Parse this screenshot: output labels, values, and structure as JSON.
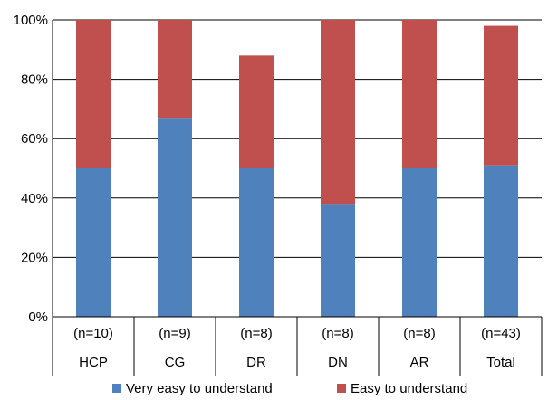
{
  "chart_data": {
    "type": "bar",
    "stacked": true,
    "title": "",
    "xlabel": "",
    "ylabel": "",
    "ylim": [
      0,
      100
    ],
    "yticks": [
      "0%",
      "20%",
      "40%",
      "60%",
      "80%",
      "100%"
    ],
    "grid": true,
    "legend_position": "bottom",
    "categories": [
      "HCP",
      "CG",
      "DR",
      "DN",
      "AR",
      "Total"
    ],
    "category_sublabels": [
      "(n=10)",
      "(n=9)",
      "(n=8)",
      "(n=8)",
      "(n=8)",
      "(n=43)"
    ],
    "series": [
      {
        "name": "Very easy to understand",
        "color": "#4f81bd",
        "values": [
          50,
          67,
          50,
          38,
          50,
          51
        ]
      },
      {
        "name": "Easy to understand",
        "color": "#c0504d",
        "values": [
          50,
          33,
          38,
          62,
          50,
          47
        ]
      }
    ]
  }
}
